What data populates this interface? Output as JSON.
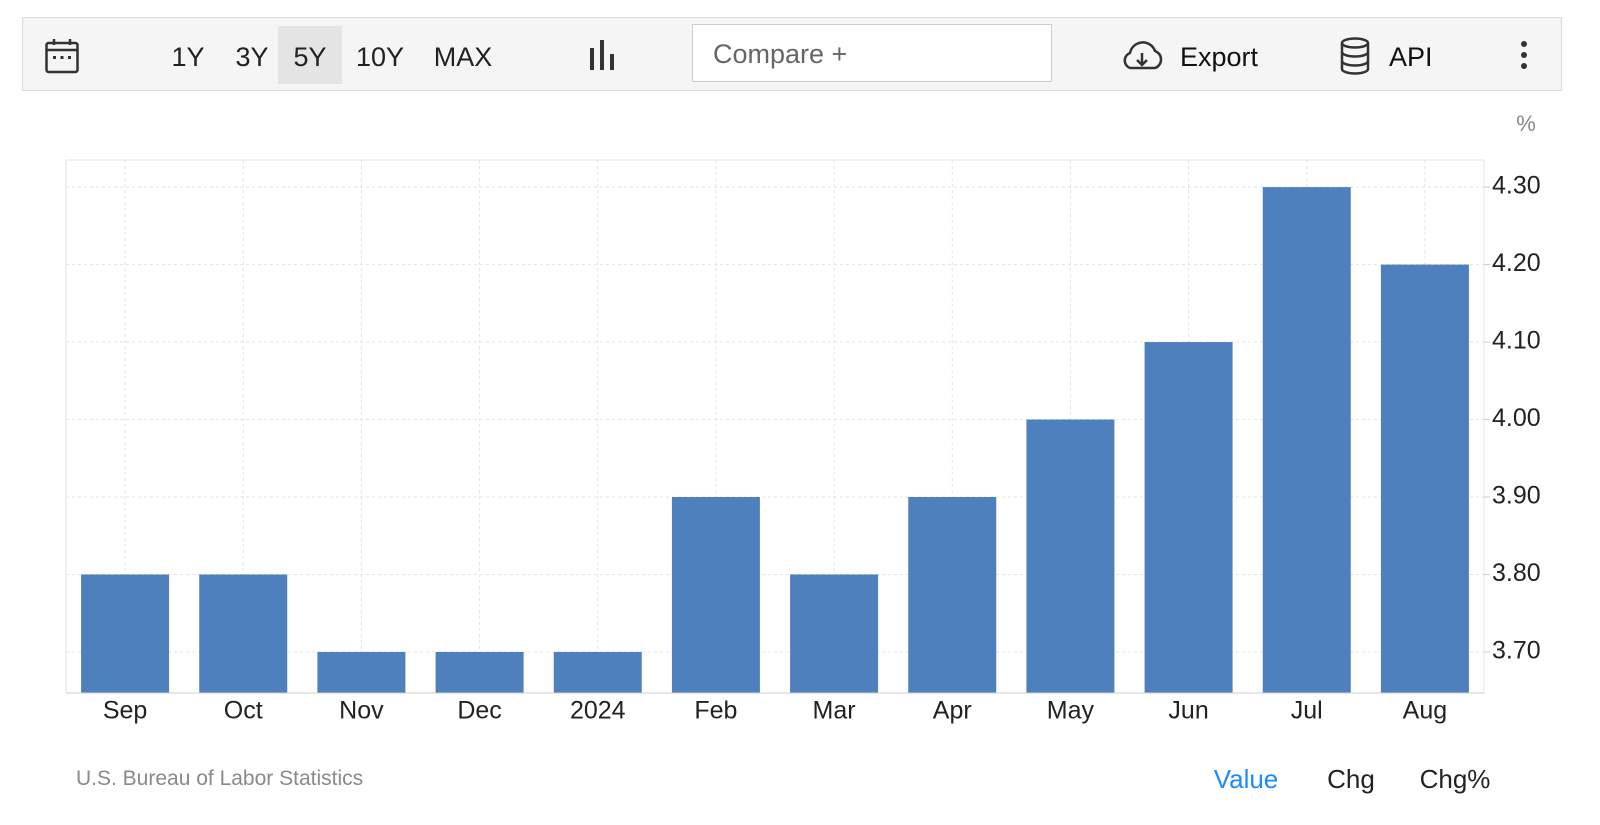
{
  "toolbar": {
    "ranges": [
      "1Y",
      "3Y",
      "5Y",
      "10Y",
      "MAX"
    ],
    "selected_range": "5Y",
    "compare": "Compare +",
    "export": "Export",
    "api": "API"
  },
  "chart_data": {
    "type": "bar",
    "unit": "%",
    "categories": [
      "Sep",
      "Oct",
      "Nov",
      "Dec",
      "2024",
      "Feb",
      "Mar",
      "Apr",
      "May",
      "Jun",
      "Jul",
      "Aug"
    ],
    "values": [
      3.8,
      3.8,
      3.7,
      3.7,
      3.7,
      3.9,
      3.8,
      3.9,
      4.0,
      4.1,
      4.3,
      4.2
    ],
    "color": "#4e80bd",
    "ylim": [
      3.647,
      4.335
    ],
    "yticks": [
      {
        "value": 3.7,
        "label": "3.70"
      },
      {
        "value": 3.8,
        "label": "3.80"
      },
      {
        "value": 3.9,
        "label": "3.90"
      },
      {
        "value": 4.0,
        "label": "4.00"
      },
      {
        "value": 4.1,
        "label": "4.10"
      },
      {
        "value": 4.2,
        "label": "4.20"
      },
      {
        "value": 4.3,
        "label": "4.30"
      }
    ],
    "grid": true
  },
  "footer": {
    "source": "U.S. Bureau of Labor Statistics",
    "tabs": [
      "Value",
      "Chg",
      "Chg%"
    ],
    "selected_tab": "Value"
  }
}
